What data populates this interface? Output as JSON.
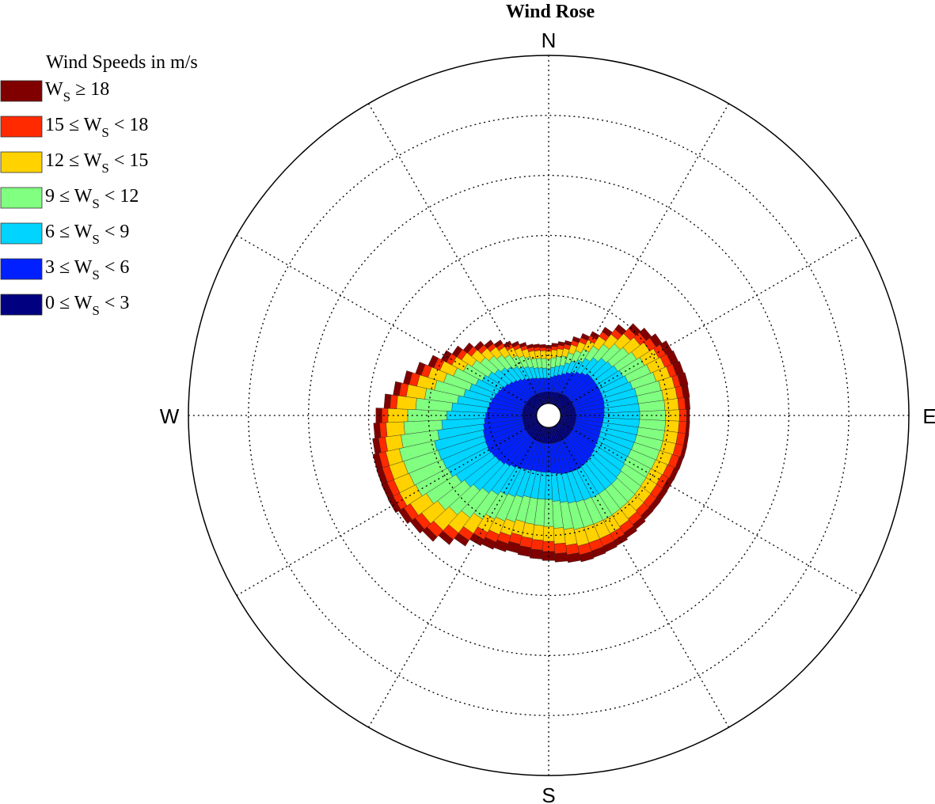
{
  "chart_data": {
    "type": "wind-rose",
    "title": "Wind Rose",
    "directions": [
      "N",
      "E",
      "S",
      "W"
    ],
    "legend": {
      "title": "Wind Speeds in m/s",
      "placement": "top-left",
      "entries": [
        {
          "label_main": "W",
          "label_sub": "S",
          "label_rest": " ≥ 18",
          "color": "#800000"
        },
        {
          "label_main": "15 ≤ W",
          "label_sub": "S",
          "label_rest": " < 18",
          "color": "#ff2a00"
        },
        {
          "label_main": "12 ≤ W",
          "label_sub": "S",
          "label_rest": " < 15",
          "color": "#ffd200"
        },
        {
          "label_main": "9 ≤ W",
          "label_sub": "S",
          "label_rest": " < 12",
          "color": "#80ff80"
        },
        {
          "label_main": "6 ≤ W",
          "label_sub": "S",
          "label_rest": " < 9",
          "color": "#00d4ff"
        },
        {
          "label_main": "3 ≤ W",
          "label_sub": "S",
          "label_rest": " < 6",
          "color": "#0020ff"
        },
        {
          "label_main": "0 ≤ W",
          "label_sub": "S",
          "label_rest": " < 3",
          "color": "#000080"
        }
      ]
    },
    "bins": [
      "0-3",
      "3-6",
      "6-9",
      "9-12",
      "12-15",
      "15-18",
      ">=18"
    ],
    "sector_count": 72,
    "radial_max": 6,
    "radial_rings": [
      1,
      2,
      3,
      4,
      5,
      6
    ],
    "grid": true,
    "gridline_angles_deg": [
      0,
      30,
      60,
      90,
      120,
      150,
      180,
      210,
      240,
      270,
      300,
      330
    ],
    "cumulative_profile": [
      {
        "dir": 0,
        "b0": 0.4,
        "b1": 0.62,
        "b2": 0.78,
        "b3": 0.94,
        "b4": 1.07,
        "b5": 1.12,
        "b6": 1.17
      },
      {
        "dir": 15,
        "b0": 0.4,
        "b1": 0.7,
        "b2": 0.86,
        "b3": 1.02,
        "b4": 1.15,
        "b5": 1.22,
        "b6": 1.28
      },
      {
        "dir": 30,
        "b0": 0.42,
        "b1": 0.82,
        "b2": 1.05,
        "b3": 1.25,
        "b4": 1.42,
        "b5": 1.5,
        "b6": 1.58
      },
      {
        "dir": 45,
        "b0": 0.44,
        "b1": 0.95,
        "b2": 1.3,
        "b3": 1.62,
        "b4": 1.85,
        "b5": 1.97,
        "b6": 2.08
      },
      {
        "dir": 60,
        "b0": 0.44,
        "b1": 0.95,
        "b2": 1.4,
        "b3": 1.8,
        "b4": 2.07,
        "b5": 2.2,
        "b6": 2.32
      },
      {
        "dir": 75,
        "b0": 0.45,
        "b1": 0.95,
        "b2": 1.5,
        "b3": 1.92,
        "b4": 2.15,
        "b5": 2.25,
        "b6": 2.38
      },
      {
        "dir": 90,
        "b0": 0.46,
        "b1": 0.92,
        "b2": 1.52,
        "b3": 1.95,
        "b4": 2.18,
        "b5": 2.3,
        "b6": 2.35
      },
      {
        "dir": 105,
        "b0": 0.46,
        "b1": 0.9,
        "b2": 1.5,
        "b3": 1.95,
        "b4": 2.17,
        "b5": 2.3,
        "b6": 2.36
      },
      {
        "dir": 120,
        "b0": 0.46,
        "b1": 0.92,
        "b2": 1.48,
        "b3": 1.92,
        "b4": 2.13,
        "b5": 2.25,
        "b6": 2.34
      },
      {
        "dir": 135,
        "b0": 0.47,
        "b1": 0.98,
        "b2": 1.55,
        "b3": 1.95,
        "b4": 2.15,
        "b5": 2.27,
        "b6": 2.36
      },
      {
        "dir": 150,
        "b0": 0.47,
        "b1": 1.02,
        "b2": 1.55,
        "b3": 1.97,
        "b4": 2.22,
        "b5": 2.35,
        "b6": 2.45
      },
      {
        "dir": 165,
        "b0": 0.47,
        "b1": 1.0,
        "b2": 1.5,
        "b3": 1.95,
        "b4": 2.23,
        "b5": 2.38,
        "b6": 2.5
      },
      {
        "dir": 180,
        "b0": 0.47,
        "b1": 0.95,
        "b2": 1.4,
        "b3": 1.85,
        "b4": 2.1,
        "b5": 2.27,
        "b6": 2.42
      },
      {
        "dir": 195,
        "b0": 0.47,
        "b1": 0.95,
        "b2": 1.4,
        "b3": 1.82,
        "b4": 2.05,
        "b5": 2.2,
        "b6": 2.35
      },
      {
        "dir": 210,
        "b0": 0.47,
        "b1": 1.0,
        "b2": 1.5,
        "b3": 1.95,
        "b4": 2.2,
        "b5": 2.33,
        "b6": 2.45
      },
      {
        "dir": 225,
        "b0": 0.46,
        "b1": 1.1,
        "b2": 1.7,
        "b3": 2.25,
        "b4": 2.6,
        "b5": 2.75,
        "b6": 2.85
      },
      {
        "dir": 240,
        "b0": 0.45,
        "b1": 1.15,
        "b2": 1.9,
        "b3": 2.5,
        "b4": 2.8,
        "b5": 2.92,
        "b6": 3.02
      },
      {
        "dir": 255,
        "b0": 0.44,
        "b1": 1.12,
        "b2": 1.95,
        "b3": 2.55,
        "b4": 2.78,
        "b5": 2.9,
        "b6": 3.0
      },
      {
        "dir": 270,
        "b0": 0.44,
        "b1": 1.05,
        "b2": 1.7,
        "b3": 2.35,
        "b4": 2.68,
        "b5": 2.78,
        "b6": 2.88
      },
      {
        "dir": 285,
        "b0": 0.44,
        "b1": 0.98,
        "b2": 1.45,
        "b3": 1.95,
        "b4": 2.25,
        "b5": 2.38,
        "b6": 2.48
      },
      {
        "dir": 300,
        "b0": 0.43,
        "b1": 0.9,
        "b2": 1.25,
        "b3": 1.6,
        "b4": 1.82,
        "b5": 1.92,
        "b6": 2.02
      },
      {
        "dir": 315,
        "b0": 0.42,
        "b1": 0.8,
        "b2": 1.08,
        "b3": 1.35,
        "b4": 1.52,
        "b5": 1.6,
        "b6": 1.68
      },
      {
        "dir": 330,
        "b0": 0.41,
        "b1": 0.7,
        "b2": 0.92,
        "b3": 1.13,
        "b4": 1.28,
        "b5": 1.34,
        "b6": 1.4
      },
      {
        "dir": 345,
        "b0": 0.4,
        "b1": 0.64,
        "b2": 0.82,
        "b3": 0.98,
        "b4": 1.11,
        "b5": 1.17,
        "b6": 1.22
      }
    ],
    "inner_hole_radius": 0.2
  }
}
